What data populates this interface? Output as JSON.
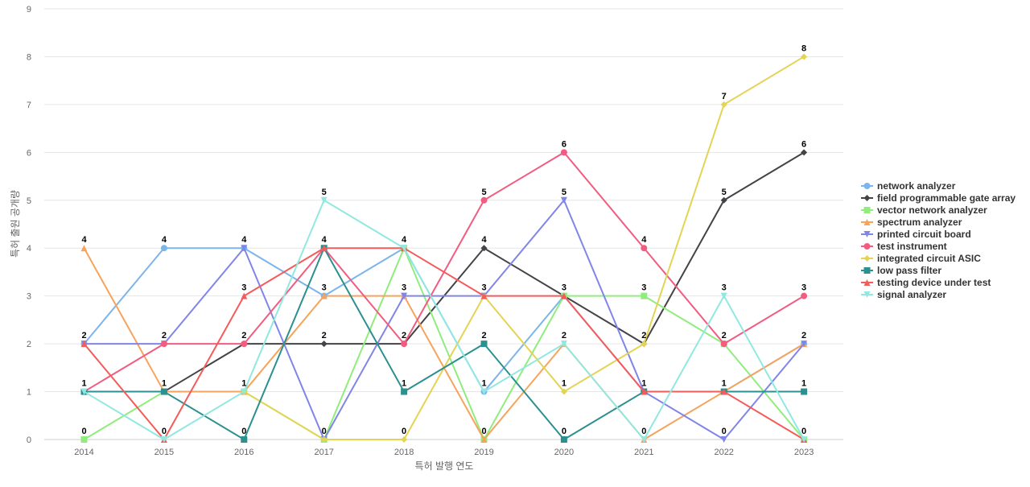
{
  "chart_data": {
    "type": "line",
    "title": "",
    "xlabel": "특허 발행 연도",
    "ylabel": "특허 출원 공개량",
    "x": [
      "2014",
      "2015",
      "2016",
      "2017",
      "2018",
      "2019",
      "2020",
      "2021",
      "2022",
      "2023"
    ],
    "ylim": [
      0,
      9
    ],
    "yticks": [
      0,
      1,
      2,
      3,
      4,
      5,
      6,
      7,
      8,
      9
    ],
    "grid": true,
    "legend_position": "right",
    "series": [
      {
        "name": "network analyzer",
        "values": [
          2,
          4,
          4,
          3,
          4,
          1,
          3,
          1,
          1,
          2
        ],
        "color": "#7cb5ec",
        "marker": "circle"
      },
      {
        "name": "field programmable gate array",
        "values": [
          null,
          1,
          2,
          2,
          2,
          4,
          3,
          2,
          5,
          6
        ],
        "color": "#434348",
        "marker": "diamond"
      },
      {
        "name": "vector network analyzer",
        "values": [
          0,
          1,
          1,
          0,
          4,
          0,
          3,
          3,
          2,
          0
        ],
        "color": "#90ed7d",
        "marker": "square"
      },
      {
        "name": "spectrum analyzer",
        "values": [
          4,
          1,
          1,
          3,
          3,
          0,
          2,
          0,
          1,
          2
        ],
        "color": "#f7a35c",
        "marker": "triangle"
      },
      {
        "name": "printed circuit board",
        "values": [
          2,
          2,
          4,
          0,
          3,
          3,
          5,
          1,
          0,
          2
        ],
        "color": "#8085e9",
        "marker": "triangle-down"
      },
      {
        "name": "test instrument",
        "values": [
          1,
          2,
          2,
          4,
          2,
          5,
          6,
          4,
          2,
          3
        ],
        "color": "#f15c80",
        "marker": "circle"
      },
      {
        "name": "integrated circuit ASIC",
        "values": [
          null,
          null,
          1,
          0,
          0,
          3,
          1,
          2,
          7,
          8
        ],
        "color": "#e4d354",
        "marker": "diamond"
      },
      {
        "name": "low pass filter",
        "values": [
          1,
          1,
          0,
          4,
          1,
          2,
          0,
          1,
          1,
          1
        ],
        "color": "#2b908f",
        "marker": "square"
      },
      {
        "name": "testing device under test",
        "values": [
          2,
          0,
          3,
          4,
          4,
          3,
          3,
          1,
          1,
          0
        ],
        "color": "#f45b5b",
        "marker": "triangle"
      },
      {
        "name": "signal analyzer",
        "values": [
          1,
          0,
          1,
          5,
          4,
          1,
          2,
          0,
          3,
          0
        ],
        "color": "#91e8e1",
        "marker": "triangle-down"
      }
    ]
  }
}
